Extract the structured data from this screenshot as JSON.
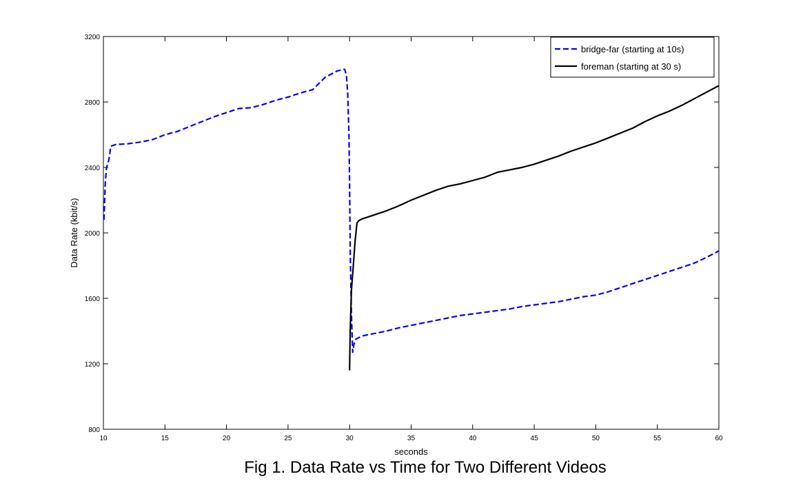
{
  "chart_data": {
    "type": "line",
    "title": "",
    "caption": "Fig 1. Data Rate vs Time for Two Different Videos",
    "xlabel": "seconds",
    "ylabel": "Data Rate (kbit/s)",
    "xlim": [
      10,
      60
    ],
    "ylim": [
      800,
      3200
    ],
    "xticks": [
      10,
      15,
      20,
      25,
      30,
      35,
      40,
      45,
      50,
      55,
      60
    ],
    "yticks": [
      800,
      1200,
      1600,
      2000,
      2400,
      2800,
      3200
    ],
    "grid": false,
    "legend_position": "top-right",
    "series": [
      {
        "name": "bridge-far (starting at 10s)",
        "color": "#0000ff",
        "style": "dashed",
        "points": [
          [
            10.05,
            2080
          ],
          [
            10.15,
            2300
          ],
          [
            10.25,
            2400
          ],
          [
            10.4,
            2430
          ],
          [
            10.5,
            2470
          ],
          [
            10.6,
            2530
          ],
          [
            11,
            2540
          ],
          [
            12,
            2545
          ],
          [
            13,
            2555
          ],
          [
            14,
            2570
          ],
          [
            15,
            2600
          ],
          [
            16,
            2620
          ],
          [
            17,
            2650
          ],
          [
            18,
            2680
          ],
          [
            19,
            2710
          ],
          [
            20,
            2735
          ],
          [
            21,
            2760
          ],
          [
            22,
            2765
          ],
          [
            23,
            2785
          ],
          [
            24,
            2810
          ],
          [
            25,
            2830
          ],
          [
            26,
            2855
          ],
          [
            27,
            2875
          ],
          [
            28,
            2950
          ],
          [
            29,
            2990
          ],
          [
            29.6,
            3000
          ],
          [
            29.75,
            2960
          ],
          [
            29.85,
            2850
          ],
          [
            29.95,
            2600
          ],
          [
            30.0,
            2300
          ],
          [
            30.05,
            1900
          ],
          [
            30.15,
            1500
          ],
          [
            30.25,
            1270
          ],
          [
            30.35,
            1320
          ],
          [
            30.5,
            1350
          ],
          [
            31,
            1370
          ],
          [
            32,
            1385
          ],
          [
            33,
            1400
          ],
          [
            34,
            1420
          ],
          [
            35,
            1435
          ],
          [
            36,
            1450
          ],
          [
            37,
            1465
          ],
          [
            38,
            1480
          ],
          [
            39,
            1495
          ],
          [
            40,
            1505
          ],
          [
            41,
            1515
          ],
          [
            42,
            1525
          ],
          [
            43,
            1535
          ],
          [
            44,
            1550
          ],
          [
            45,
            1560
          ],
          [
            46,
            1570
          ],
          [
            47,
            1580
          ],
          [
            48,
            1595
          ],
          [
            49,
            1610
          ],
          [
            50,
            1620
          ],
          [
            51,
            1640
          ],
          [
            52,
            1665
          ],
          [
            53,
            1690
          ],
          [
            54,
            1715
          ],
          [
            55,
            1740
          ],
          [
            56,
            1765
          ],
          [
            57,
            1790
          ],
          [
            58,
            1815
          ],
          [
            59,
            1850
          ],
          [
            60,
            1890
          ]
        ]
      },
      {
        "name": "foreman (starting at 30 s)",
        "color": "#000000",
        "style": "solid",
        "points": [
          [
            30.0,
            1160
          ],
          [
            30.05,
            1400
          ],
          [
            30.15,
            1650
          ],
          [
            30.3,
            1800
          ],
          [
            30.45,
            1950
          ],
          [
            30.6,
            2060
          ],
          [
            30.75,
            2075
          ],
          [
            31,
            2085
          ],
          [
            32,
            2110
          ],
          [
            33,
            2135
          ],
          [
            34,
            2165
          ],
          [
            35,
            2200
          ],
          [
            36,
            2230
          ],
          [
            37,
            2260
          ],
          [
            38,
            2285
          ],
          [
            39,
            2300
          ],
          [
            40,
            2320
          ],
          [
            41,
            2340
          ],
          [
            42,
            2370
          ],
          [
            43,
            2385
          ],
          [
            44,
            2400
          ],
          [
            45,
            2420
          ],
          [
            46,
            2445
          ],
          [
            47,
            2470
          ],
          [
            48,
            2500
          ],
          [
            49,
            2525
          ],
          [
            50,
            2550
          ],
          [
            51,
            2580
          ],
          [
            52,
            2610
          ],
          [
            53,
            2640
          ],
          [
            54,
            2680
          ],
          [
            55,
            2715
          ],
          [
            56,
            2745
          ],
          [
            57,
            2780
          ],
          [
            58,
            2820
          ],
          [
            59,
            2860
          ],
          [
            60,
            2900
          ]
        ]
      }
    ]
  }
}
